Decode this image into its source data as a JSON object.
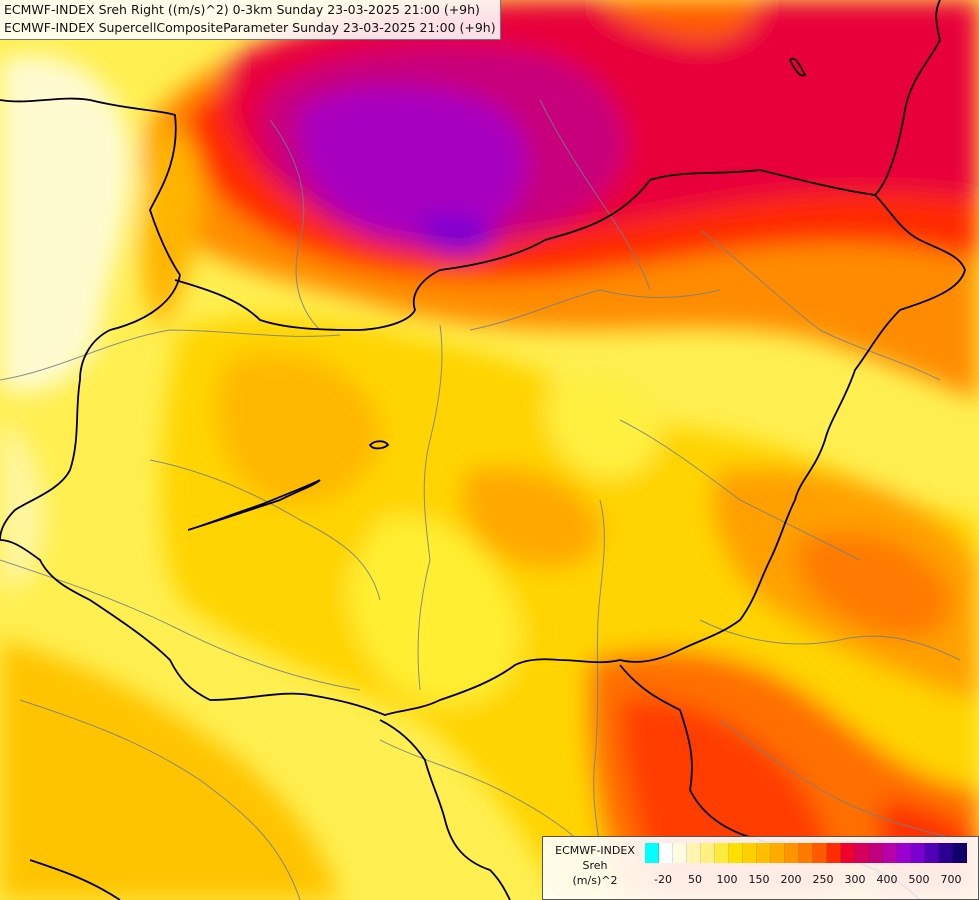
{
  "titles": [
    "ECMWF-INDEX Sreh Right ((m/s)^2) 0-3km Sunday 23-03-2025 21:00 (+9h)",
    "ECMWF-INDEX SupercellCompositeParameter Sunday 23-03-2025 21:00 (+9h)"
  ],
  "legend": {
    "line1": "ECMWF-INDEX",
    "line2": "Sreh",
    "line3": "(m/s)^2",
    "colors": [
      "#00ffff",
      "#ffffff",
      "#fffbe0",
      "#fff5b0",
      "#fff080",
      "#ffeb3c",
      "#fee000",
      "#ffd000",
      "#ffbf00",
      "#ffab00",
      "#ff9400",
      "#ff7a00",
      "#ff5a00",
      "#ff2c00",
      "#f00030",
      "#d4005c",
      "#c0007c",
      "#b800a8",
      "#9a00d0",
      "#7a00d0",
      "#5200b8",
      "#2a0090",
      "#12006a"
    ],
    "ticks": [
      "-20",
      "50",
      "100",
      "150",
      "200",
      "250",
      "300",
      "400",
      "500",
      "700"
    ]
  },
  "map": {
    "fill_colors": {
      "pale": "#fff5b0",
      "yellow": "#ffef40",
      "gold": "#ffd000",
      "amber": "#ffb400",
      "orange": "#ff8c00",
      "deep_orange": "#ff5a00",
      "red": "#ff2800",
      "crimson": "#e0003c",
      "magenta": "#c8007c",
      "purple": "#a800c0",
      "violet": "#7a00d0"
    }
  }
}
